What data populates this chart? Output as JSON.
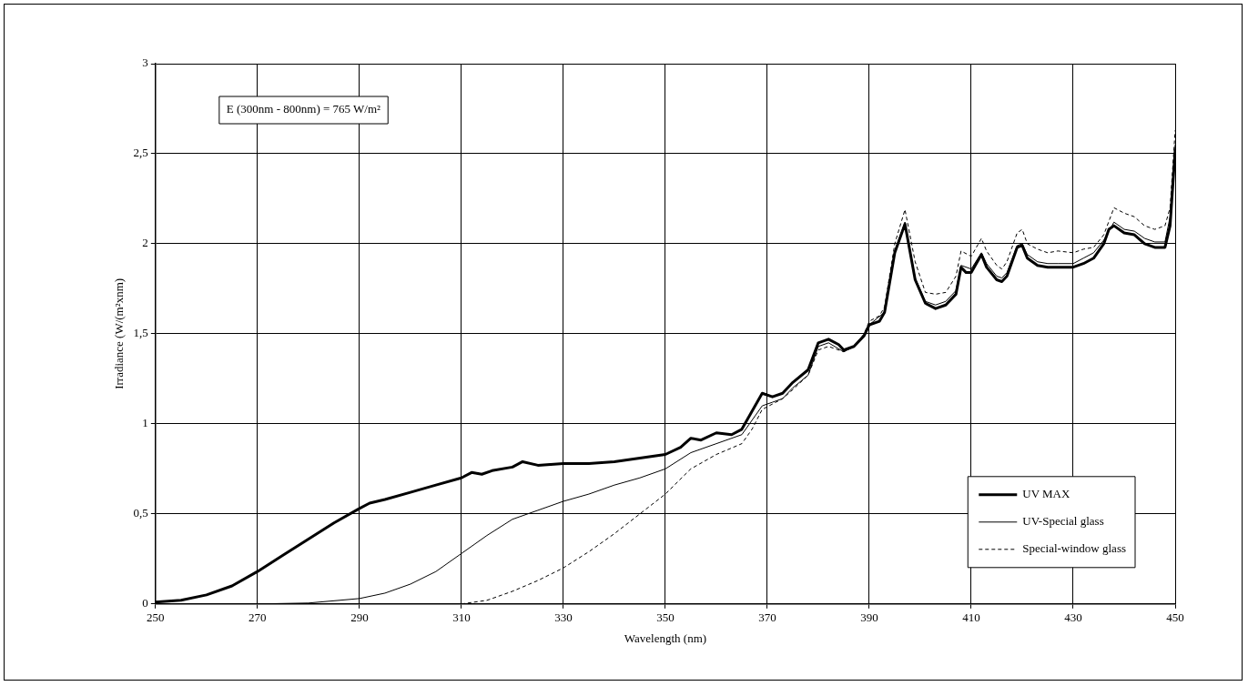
{
  "chart_data": {
    "type": "line",
    "xlabel": "Wavelength (nm)",
    "ylabel": "Irradiance (W/(m²xnm)",
    "annotations": [
      "E (300nm - 800nm) = 765 W/m²"
    ],
    "xlim": [
      250,
      450
    ],
    "xticks": [
      250,
      270,
      290,
      310,
      330,
      350,
      370,
      390,
      410,
      430,
      450
    ],
    "ylim": [
      0,
      3
    ],
    "yticks": [
      0,
      {
        "value": 0.5,
        "label": "0,5"
      },
      1,
      {
        "value": 1.5,
        "label": "1,5"
      },
      2,
      {
        "value": 2.5,
        "label": "2,5"
      },
      3
    ],
    "grid": true,
    "legend": "bottom right",
    "marker": "none",
    "series": [
      {
        "name": "UV MAX",
        "color": "#000000",
        "line_style": "solid",
        "x": [
          250,
          255,
          260,
          265,
          270,
          275,
          280,
          285,
          290,
          292,
          295,
          300,
          305,
          310,
          312,
          314,
          316,
          320,
          322,
          325,
          330,
          335,
          340,
          345,
          350,
          353,
          355,
          357,
          360,
          363,
          365,
          367,
          369,
          371,
          373,
          375,
          378,
          380,
          382,
          384,
          385,
          387,
          389,
          390,
          392,
          393,
          395,
          397,
          399,
          401,
          403,
          405,
          407,
          408,
          409,
          410,
          412,
          413,
          415,
          416,
          417,
          419,
          420,
          421,
          423,
          425,
          427,
          430,
          432,
          434,
          436,
          437,
          438,
          440,
          442,
          444,
          446,
          448,
          449,
          450
        ],
        "values": [
          0.01,
          0.02,
          0.05,
          0.1,
          0.18,
          0.27,
          0.36,
          0.45,
          0.53,
          0.56,
          0.58,
          0.62,
          0.66,
          0.7,
          0.73,
          0.72,
          0.74,
          0.76,
          0.79,
          0.77,
          0.78,
          0.78,
          0.79,
          0.81,
          0.83,
          0.87,
          0.92,
          0.91,
          0.95,
          0.94,
          0.97,
          1.07,
          1.17,
          1.15,
          1.17,
          1.23,
          1.3,
          1.45,
          1.47,
          1.44,
          1.41,
          1.43,
          1.49,
          1.55,
          1.57,
          1.62,
          1.95,
          2.11,
          1.8,
          1.67,
          1.64,
          1.66,
          1.72,
          1.87,
          1.84,
          1.84,
          1.94,
          1.87,
          1.8,
          1.79,
          1.82,
          1.98,
          1.99,
          1.92,
          1.88,
          1.87,
          1.87,
          1.87,
          1.89,
          1.92,
          2.0,
          2.08,
          2.1,
          2.06,
          2.05,
          2.0,
          1.98,
          1.98,
          2.1,
          2.52
        ]
      },
      {
        "name": "UV-Special glass",
        "color": "#000000",
        "line_style": "solid",
        "x": [
          250,
          270,
          280,
          290,
          295,
          300,
          305,
          310,
          315,
          320,
          325,
          330,
          335,
          340,
          345,
          350,
          355,
          360,
          365,
          367,
          369,
          371,
          373,
          375,
          378,
          380,
          382,
          385,
          387,
          389,
          390,
          393,
          395,
          397,
          399,
          401,
          403,
          405,
          407,
          408,
          410,
          412,
          413,
          415,
          416,
          417,
          419,
          420,
          421,
          423,
          425,
          427,
          430,
          432,
          434,
          436,
          438,
          440,
          442,
          444,
          446,
          448,
          449,
          450
        ],
        "values": [
          0,
          0,
          0.005,
          0.03,
          0.06,
          0.11,
          0.18,
          0.28,
          0.38,
          0.47,
          0.52,
          0.57,
          0.61,
          0.66,
          0.7,
          0.75,
          0.84,
          0.89,
          0.94,
          1.02,
          1.1,
          1.12,
          1.14,
          1.2,
          1.27,
          1.43,
          1.45,
          1.4,
          1.43,
          1.49,
          1.55,
          1.62,
          1.96,
          2.12,
          1.81,
          1.68,
          1.66,
          1.68,
          1.74,
          1.88,
          1.86,
          1.95,
          1.89,
          1.82,
          1.81,
          1.84,
          1.99,
          2.0,
          1.94,
          1.9,
          1.89,
          1.89,
          1.89,
          1.92,
          1.95,
          2.02,
          2.12,
          2.08,
          2.07,
          2.03,
          2.01,
          2.01,
          2.15,
          2.55
        ]
      },
      {
        "name": "Special-window glass",
        "color": "#000000",
        "line_style": "dashed",
        "x": [
          250,
          310,
          315,
          320,
          325,
          330,
          335,
          340,
          345,
          350,
          355,
          360,
          365,
          367,
          369,
          371,
          373,
          375,
          378,
          380,
          382,
          385,
          387,
          389,
          390,
          392,
          393,
          395,
          397,
          399,
          401,
          403,
          405,
          407,
          408,
          410,
          412,
          413,
          415,
          416,
          417,
          419,
          420,
          421,
          423,
          425,
          427,
          430,
          432,
          434,
          436,
          438,
          440,
          442,
          444,
          446,
          448,
          449,
          450
        ],
        "values": [
          0,
          0,
          0.02,
          0.07,
          0.13,
          0.2,
          0.29,
          0.39,
          0.5,
          0.61,
          0.75,
          0.83,
          0.89,
          0.97,
          1.08,
          1.11,
          1.14,
          1.19,
          1.27,
          1.41,
          1.43,
          1.4,
          1.43,
          1.5,
          1.57,
          1.6,
          1.65,
          2.0,
          2.19,
          1.9,
          1.73,
          1.72,
          1.73,
          1.82,
          1.96,
          1.93,
          2.03,
          1.96,
          1.88,
          1.86,
          1.9,
          2.06,
          2.08,
          2.0,
          1.97,
          1.95,
          1.96,
          1.95,
          1.97,
          1.98,
          2.05,
          2.2,
          2.17,
          2.15,
          2.1,
          2.08,
          2.1,
          2.2,
          2.63
        ]
      }
    ]
  }
}
